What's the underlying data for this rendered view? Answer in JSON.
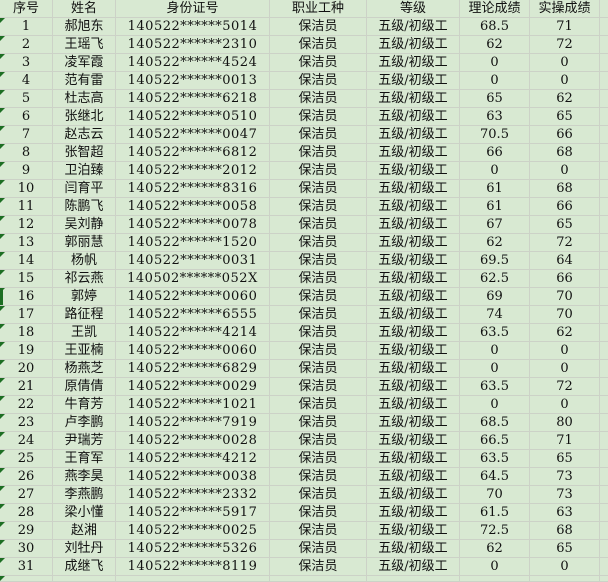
{
  "colors": {
    "cell_bg": "#d8e9d2",
    "gridline": "#ccd2c7",
    "error_marker": "#1c6e22",
    "text": "#111111"
  },
  "table": {
    "columns": [
      {
        "key": "no",
        "label": "序号"
      },
      {
        "key": "name",
        "label": "姓名"
      },
      {
        "key": "id",
        "label": "身份证号"
      },
      {
        "key": "job",
        "label": "职业工种"
      },
      {
        "key": "level",
        "label": "等级"
      },
      {
        "key": "theory",
        "label": "理论成绩"
      },
      {
        "key": "practice",
        "label": "实操成绩"
      }
    ],
    "has_error_indicator": true,
    "selected_row_no": "16",
    "partial_bottom_row": true,
    "rows": [
      {
        "no": "1",
        "name": "郝旭东",
        "id": "140522******5014",
        "job": "保洁员",
        "level": "五级/初级工",
        "theory": "68.5",
        "practice": "71"
      },
      {
        "no": "2",
        "name": "王瑶飞",
        "id": "140522******2310",
        "job": "保洁员",
        "level": "五级/初级工",
        "theory": "62",
        "practice": "72"
      },
      {
        "no": "3",
        "name": "凌军霞",
        "id": "140522******4524",
        "job": "保洁员",
        "level": "五级/初级工",
        "theory": "0",
        "practice": "0"
      },
      {
        "no": "4",
        "name": "范有雷",
        "id": "140522******0013",
        "job": "保洁员",
        "level": "五级/初级工",
        "theory": "0",
        "practice": "0"
      },
      {
        "no": "5",
        "name": "杜志高",
        "id": "140522******6218",
        "job": "保洁员",
        "level": "五级/初级工",
        "theory": "65",
        "practice": "62"
      },
      {
        "no": "6",
        "name": "张继北",
        "id": "140522******0510",
        "job": "保洁员",
        "level": "五级/初级工",
        "theory": "63",
        "practice": "65"
      },
      {
        "no": "7",
        "name": "赵志云",
        "id": "140522******0047",
        "job": "保洁员",
        "level": "五级/初级工",
        "theory": "70.5",
        "practice": "66"
      },
      {
        "no": "8",
        "name": "张智超",
        "id": "140522******6812",
        "job": "保洁员",
        "level": "五级/初级工",
        "theory": "66",
        "practice": "68"
      },
      {
        "no": "9",
        "name": "卫泊臻",
        "id": "140522******2012",
        "job": "保洁员",
        "level": "五级/初级工",
        "theory": "0",
        "practice": "0"
      },
      {
        "no": "10",
        "name": "闫育平",
        "id": "140522******8316",
        "job": "保洁员",
        "level": "五级/初级工",
        "theory": "61",
        "practice": "68"
      },
      {
        "no": "11",
        "name": "陈鹏飞",
        "id": "140522******0058",
        "job": "保洁员",
        "level": "五级/初级工",
        "theory": "61",
        "practice": "66"
      },
      {
        "no": "12",
        "name": "吴刘静",
        "id": "140522******0078",
        "job": "保洁员",
        "level": "五级/初级工",
        "theory": "67",
        "practice": "65"
      },
      {
        "no": "13",
        "name": "郭丽慧",
        "id": "140522******1520",
        "job": "保洁员",
        "level": "五级/初级工",
        "theory": "62",
        "practice": "72"
      },
      {
        "no": "14",
        "name": "杨帆",
        "id": "140522******0031",
        "job": "保洁员",
        "level": "五级/初级工",
        "theory": "69.5",
        "practice": "64"
      },
      {
        "no": "15",
        "name": "祁云燕",
        "id": "140502******052X",
        "job": "保洁员",
        "level": "五级/初级工",
        "theory": "62.5",
        "practice": "66"
      },
      {
        "no": "16",
        "name": "郭婷",
        "id": "140522******0060",
        "job": "保洁员",
        "level": "五级/初级工",
        "theory": "69",
        "practice": "70"
      },
      {
        "no": "17",
        "name": "路征程",
        "id": "140522******6555",
        "job": "保洁员",
        "level": "五级/初级工",
        "theory": "74",
        "practice": "70"
      },
      {
        "no": "18",
        "name": "王凯",
        "id": "140522******4214",
        "job": "保洁员",
        "level": "五级/初级工",
        "theory": "63.5",
        "practice": "62"
      },
      {
        "no": "19",
        "name": "王亚楠",
        "id": "140522******0060",
        "job": "保洁员",
        "level": "五级/初级工",
        "theory": "0",
        "practice": "0"
      },
      {
        "no": "20",
        "name": "杨燕芝",
        "id": "140522******6829",
        "job": "保洁员",
        "level": "五级/初级工",
        "theory": "0",
        "practice": "0"
      },
      {
        "no": "21",
        "name": "原倩倩",
        "id": "140522******0029",
        "job": "保洁员",
        "level": "五级/初级工",
        "theory": "63.5",
        "practice": "72"
      },
      {
        "no": "22",
        "name": "牛育芳",
        "id": "140522******1021",
        "job": "保洁员",
        "level": "五级/初级工",
        "theory": "0",
        "practice": "0"
      },
      {
        "no": "23",
        "name": "卢李鹏",
        "id": "140522******7919",
        "job": "保洁员",
        "level": "五级/初级工",
        "theory": "68.5",
        "practice": "80"
      },
      {
        "no": "24",
        "name": "尹瑞芳",
        "id": "140522******0028",
        "job": "保洁员",
        "level": "五级/初级工",
        "theory": "66.5",
        "practice": "71"
      },
      {
        "no": "25",
        "name": "王育军",
        "id": "140522******4212",
        "job": "保洁员",
        "level": "五级/初级工",
        "theory": "63.5",
        "practice": "65"
      },
      {
        "no": "26",
        "name": "燕李昊",
        "id": "140522******0038",
        "job": "保洁员",
        "level": "五级/初级工",
        "theory": "64.5",
        "practice": "73"
      },
      {
        "no": "27",
        "name": "李燕鹏",
        "id": "140522******2332",
        "job": "保洁员",
        "level": "五级/初级工",
        "theory": "70",
        "practice": "73"
      },
      {
        "no": "28",
        "name": "梁小懂",
        "id": "140522******5917",
        "job": "保洁员",
        "level": "五级/初级工",
        "theory": "61.5",
        "practice": "63"
      },
      {
        "no": "29",
        "name": "赵湘",
        "id": "140522******0025",
        "job": "保洁员",
        "level": "五级/初级工",
        "theory": "72.5",
        "practice": "68"
      },
      {
        "no": "30",
        "name": "刘牡丹",
        "id": "140522******5326",
        "job": "保洁员",
        "level": "五级/初级工",
        "theory": "62",
        "practice": "65"
      },
      {
        "no": "31",
        "name": "成继飞",
        "id": "140522******8119",
        "job": "保洁员",
        "level": "五级/初级工",
        "theory": "0",
        "practice": "0"
      }
    ]
  }
}
